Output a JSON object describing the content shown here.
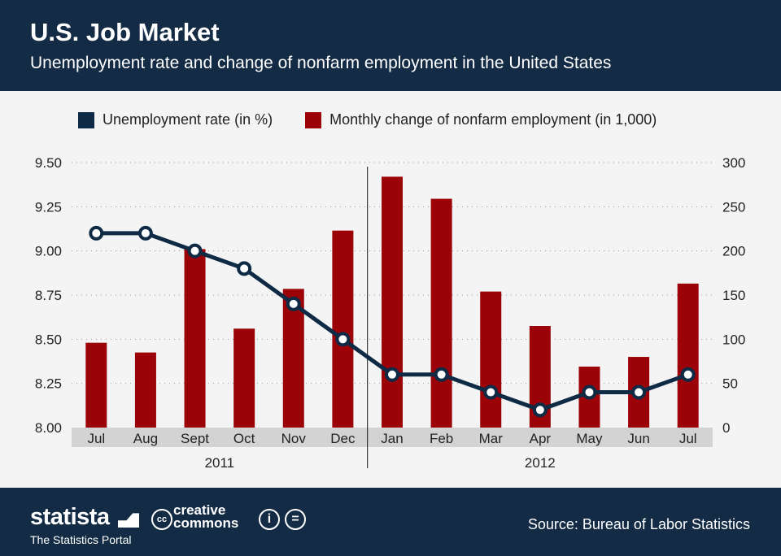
{
  "header": {
    "title": "U.S. Job Market",
    "subtitle": "Unemployment rate and change of nonfarm employment in the United States"
  },
  "footer": {
    "brand": "statista",
    "tagline": "The Statistics Portal",
    "license": "creative commons",
    "source": "Source: Bureau of Labor Statistics"
  },
  "colors": {
    "line": "#0e2a45",
    "bar": "#9c0308",
    "header": "#142b45"
  },
  "chart_data": {
    "type": "bar+line",
    "title": "U.S. Job Market",
    "categories": [
      "Jul",
      "Aug",
      "Sept",
      "Oct",
      "Nov",
      "Dec",
      "Jan",
      "Feb",
      "Mar",
      "Apr",
      "May",
      "Jun",
      "Jul"
    ],
    "year_groups": [
      {
        "label": "2011",
        "count": 6
      },
      {
        "label": "2012",
        "count": 7
      }
    ],
    "series": [
      {
        "name": "Unemployment rate (in %)",
        "type": "line",
        "axis": "left",
        "values": [
          9.1,
          9.1,
          9.0,
          8.9,
          8.7,
          8.5,
          8.3,
          8.3,
          8.2,
          8.1,
          8.2,
          8.2,
          8.3
        ]
      },
      {
        "name": "Monthly change of nonfarm employment (in 1,000)",
        "type": "bar",
        "axis": "right",
        "values": [
          96,
          85,
          202,
          112,
          157,
          223,
          284,
          259,
          154,
          115,
          69,
          80,
          163
        ]
      }
    ],
    "left_axis": {
      "ylim": [
        8.0,
        9.5
      ],
      "ticks": [
        "8.00",
        "8.25",
        "8.50",
        "8.75",
        "9.00",
        "9.25",
        "9.50"
      ]
    },
    "right_axis": {
      "ylim": [
        0,
        300
      ],
      "ticks": [
        "0",
        "50",
        "100",
        "150",
        "200",
        "250",
        "300"
      ]
    },
    "grid": true,
    "legend_position": "top"
  }
}
